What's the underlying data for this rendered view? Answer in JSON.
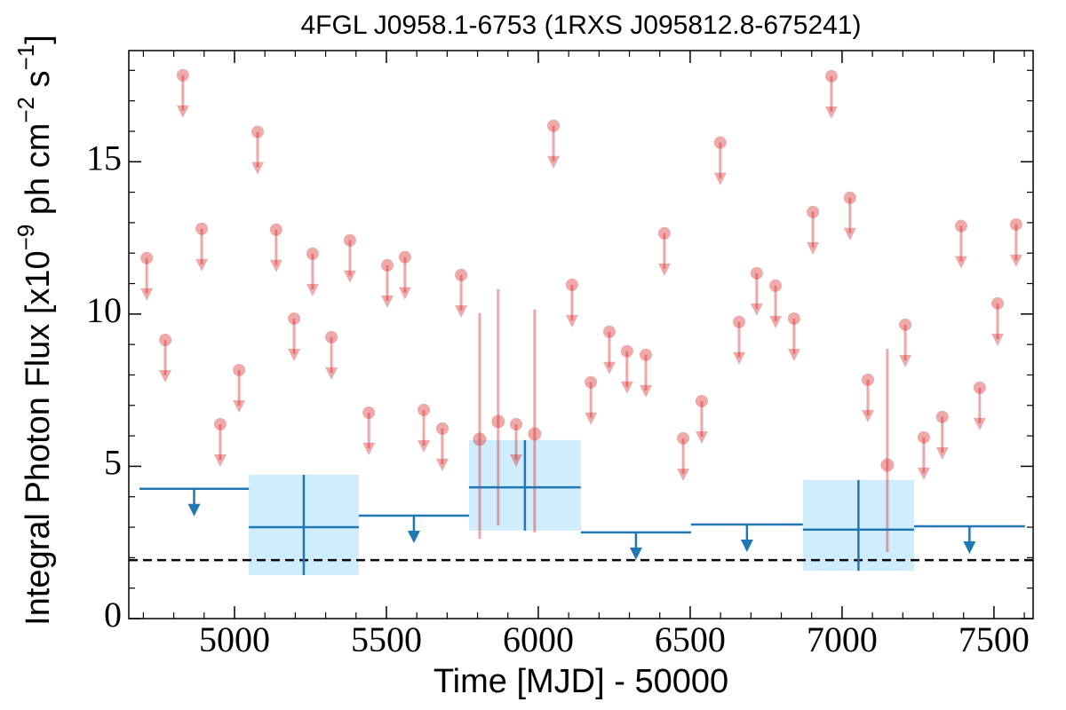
{
  "chart_data": {
    "type": "lightcurve",
    "title": "4FGL J0958.1-6753 (1RXS J095812.8-675241)",
    "xlabel": "Time [MJD] - 50000",
    "ylabel": [
      "Integral Photon Flux [x10",
      "−9",
      " ph cm",
      "−2",
      " s",
      "−1",
      "]"
    ],
    "xlim": [
      4652,
      7629
    ],
    "ylim": [
      0,
      18.65
    ],
    "xticks": [
      5000,
      5500,
      6000,
      6500,
      7000,
      7500
    ],
    "yticks": [
      0,
      5,
      10,
      15
    ],
    "xminorticks": [
      4700,
      4800,
      4900,
      5100,
      5200,
      5300,
      5400,
      5600,
      5700,
      5800,
      5900,
      6100,
      6200,
      6300,
      6400,
      6600,
      6700,
      6800,
      6900,
      7100,
      7200,
      7300,
      7400,
      7600
    ],
    "yminorticks": [
      1,
      2,
      3,
      4,
      6,
      7,
      8,
      9,
      11,
      12,
      13,
      14,
      16,
      17,
      18
    ],
    "upper_limits": {
      "color": "#d62728",
      "x": [
        4711,
        4772,
        4830,
        4892,
        4953,
        5015,
        5076,
        5137,
        5196,
        5257,
        5319,
        5380,
        5442,
        5503,
        5561,
        5623,
        5684,
        5746,
        5927,
        6050,
        6111,
        6173,
        6234,
        6292,
        6354,
        6415,
        6477,
        6538,
        6599,
        6661,
        6719,
        6781,
        6842,
        6904,
        6965,
        7026,
        7085,
        7208,
        7269,
        7330,
        7392,
        7453,
        7512,
        7573
      ],
      "values": [
        11.84,
        9.15,
        17.84,
        12.8,
        6.38,
        8.16,
        15.98,
        12.77,
        9.85,
        11.98,
        9.24,
        12.42,
        6.76,
        11.6,
        11.87,
        6.85,
        6.24,
        11.28,
        6.38,
        16.18,
        10.96,
        7.76,
        9.42,
        8.78,
        8.66,
        12.65,
        5.92,
        7.14,
        15.63,
        9.74,
        11.34,
        10.93,
        9.85,
        13.35,
        17.81,
        13.82,
        7.84,
        9.65,
        5.95,
        6.62,
        12.89,
        7.58,
        10.35,
        12.94
      ]
    },
    "detections": {
      "color": "#d62728",
      "x": [
        5807,
        5868,
        5988,
        7149
      ],
      "values": [
        5.89,
        6.47,
        6.06,
        5.04
      ],
      "err_low": [
        3.27,
        3.41,
        3.23,
        2.85
      ],
      "err_high": [
        4.14,
        4.35,
        4.09,
        3.82
      ]
    },
    "binned_upper_limits": {
      "color": "#1f77b4",
      "x_start": [
        4687,
        5409,
        6140,
        6503,
        7237
      ],
      "x_end": [
        5047,
        5772,
        6503,
        6871,
        7602
      ],
      "values": [
        4.26,
        3.38,
        2.83,
        3.09,
        3.03
      ]
    },
    "binned_detections": {
      "color": "#1f77b4",
      "box_color": "#cfedfc",
      "x_start": [
        5047,
        5772,
        6871
      ],
      "x_end": [
        5409,
        6140,
        7237
      ],
      "values": [
        3.0,
        4.31,
        2.92
      ],
      "err_low": [
        1.57,
        1.42,
        1.35
      ],
      "err_high": [
        1.72,
        1.55,
        1.63
      ]
    },
    "reference_line": 1.92
  }
}
